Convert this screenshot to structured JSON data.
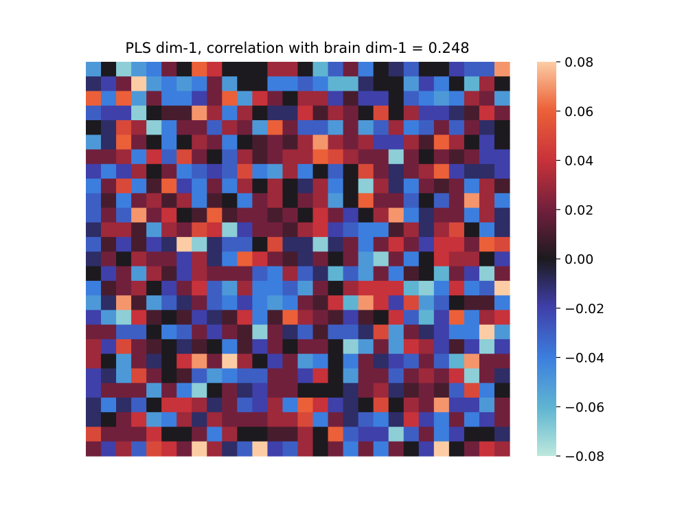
{
  "chart_data": {
    "type": "heatmap",
    "title": "PLS dim-1, correlation with brain dim-1 = 0.248",
    "xlabel": "",
    "ylabel": "",
    "n_rows": 27,
    "n_cols": 28,
    "colormap": "icefire",
    "vmin": -0.08,
    "vmax": 0.08,
    "colorbar": {
      "ticks": [
        0.08,
        0.06,
        0.04,
        0.02,
        0.0,
        -0.02,
        -0.04,
        -0.06,
        -0.08
      ],
      "tick_labels": [
        "0.08",
        "0.06",
        "0.04",
        "0.02",
        "0.00",
        "−0.02",
        "−0.04",
        "−0.06",
        "−0.08"
      ]
    },
    "values": [
      [
        -0.05,
        0.0,
        -0.07,
        -0.05,
        -0.04,
        0.02,
        0.0,
        0.06,
        0.04,
        0.0,
        0.0,
        0.0,
        0.03,
        0.03,
        0.0,
        -0.06,
        -0.03,
        0.02,
        -0.04,
        0.0,
        -0.01,
        -0.03,
        0.0,
        0.0,
        -0.02,
        -0.03,
        -0.03,
        0.07
      ],
      [
        -0.01,
        -0.02,
        0.02,
        0.08,
        -0.05,
        -0.04,
        -0.05,
        -0.04,
        0.02,
        -0.05,
        0.0,
        0.0,
        -0.04,
        -0.04,
        -0.03,
        -0.04,
        -0.06,
        -0.06,
        -0.01,
        0.0,
        0.0,
        -0.05,
        -0.02,
        -0.04,
        0.0,
        -0.06,
        0.03,
        0.0
      ],
      [
        0.06,
        -0.04,
        0.06,
        -0.05,
        0.02,
        -0.04,
        -0.04,
        -0.02,
        0.02,
        0.06,
        -0.05,
        0.04,
        0.02,
        0.0,
        0.03,
        0.03,
        -0.02,
        0.01,
        -0.02,
        -0.02,
        0.0,
        -0.03,
        -0.04,
        -0.05,
        -0.04,
        0.03,
        0.02,
        -0.05
      ],
      [
        -0.03,
        -0.02,
        -0.02,
        -0.07,
        0.0,
        0.01,
        0.01,
        0.07,
        0.03,
        -0.04,
        0.03,
        0.0,
        -0.01,
        -0.01,
        0.04,
        0.01,
        0.03,
        0.02,
        0.0,
        0.05,
        0.0,
        0.03,
        -0.02,
        -0.02,
        -0.01,
        0.01,
        0.04,
        0.02
      ],
      [
        0.0,
        -0.01,
        0.05,
        0.03,
        -0.07,
        -0.04,
        0.02,
        0.02,
        -0.03,
        0.03,
        0.02,
        -0.05,
        0.06,
        0.02,
        -0.03,
        -0.03,
        -0.05,
        0.02,
        -0.05,
        -0.03,
        0.03,
        -0.04,
        -0.03,
        0.02,
        -0.03,
        0.02,
        -0.01,
        0.0
      ],
      [
        -0.05,
        -0.01,
        0.06,
        0.02,
        0.0,
        -0.04,
        0.0,
        0.03,
        0.02,
        -0.04,
        0.0,
        0.01,
        0.02,
        0.01,
        0.03,
        0.07,
        0.03,
        0.02,
        0.03,
        -0.02,
        -0.02,
        0.03,
        0.01,
        0.06,
        0.03,
        0.0,
        -0.02,
        0.0
      ],
      [
        0.02,
        0.02,
        0.03,
        -0.04,
        0.04,
        -0.03,
        0.05,
        0.02,
        0.0,
        -0.03,
        0.03,
        0.01,
        0.02,
        0.03,
        0.03,
        0.06,
        0.05,
        0.03,
        0.02,
        0.02,
        -0.07,
        0.02,
        0.0,
        0.02,
        0.01,
        0.02,
        -0.02,
        -0.02
      ],
      [
        -0.02,
        -0.04,
        -0.02,
        0.03,
        0.0,
        0.02,
        -0.04,
        -0.03,
        -0.02,
        -0.03,
        0.05,
        -0.04,
        -0.05,
        0.03,
        -0.04,
        0.0,
        -0.03,
        0.0,
        0.05,
        0.02,
        -0.01,
        0.02,
        0.03,
        0.06,
        -0.02,
        -0.01,
        -0.01,
        -0.02
      ],
      [
        -0.04,
        0.02,
        0.05,
        -0.04,
        0.01,
        0.06,
        -0.02,
        -0.04,
        0.02,
        -0.04,
        0.03,
        0.0,
        0.03,
        0.0,
        -0.01,
        0.03,
        -0.04,
        0.0,
        -0.07,
        0.03,
        -0.01,
        -0.04,
        0.02,
        0.01,
        0.02,
        -0.04,
        0.03,
        0.01
      ],
      [
        -0.03,
        0.01,
        -0.04,
        0.02,
        0.03,
        0.01,
        0.03,
        -0.04,
        0.01,
        0.0,
        -0.04,
        0.02,
        0.03,
        0.0,
        0.02,
        0.03,
        -0.05,
        0.0,
        0.06,
        0.02,
        0.02,
        -0.03,
        0.0,
        -0.03,
        0.02,
        0.07,
        0.03,
        -0.04
      ],
      [
        -0.03,
        0.02,
        -0.03,
        0.07,
        0.02,
        0.04,
        0.0,
        0.01,
        0.06,
        0.01,
        0.02,
        0.02,
        0.01,
        0.02,
        0.0,
        0.04,
        0.02,
        -0.02,
        0.0,
        0.03,
        0.07,
        -0.04,
        -0.01,
        0.02,
        0.02,
        -0.04,
        0.03,
        -0.01
      ],
      [
        -0.01,
        0.03,
        0.03,
        0.01,
        -0.05,
        0.03,
        0.02,
        0.05,
        0.04,
        -0.07,
        -0.02,
        0.02,
        0.02,
        0.01,
        0.03,
        0.04,
        -0.02,
        -0.03,
        -0.04,
        -0.04,
        0.01,
        0.03,
        -0.01,
        0.03,
        0.05,
        0.0,
        -0.04,
        -0.01
      ],
      [
        -0.03,
        0.01,
        -0.02,
        0.01,
        -0.02,
        -0.01,
        0.08,
        -0.07,
        -0.01,
        -0.03,
        -0.03,
        0.0,
        0.05,
        -0.01,
        -0.01,
        -0.07,
        -0.01,
        0.02,
        -0.04,
        0.02,
        0.04,
        0.02,
        -0.02,
        0.04,
        0.04,
        0.02,
        0.06,
        0.05
      ],
      [
        -0.01,
        0.02,
        0.0,
        0.03,
        0.02,
        0.02,
        -0.02,
        0.03,
        -0.01,
        -0.04,
        0.06,
        0.04,
        0.02,
        0.01,
        -0.01,
        0.02,
        0.0,
        0.02,
        -0.05,
        -0.07,
        0.02,
        -0.04,
        0.0,
        0.04,
        0.03,
        0.03,
        0.0,
        -0.02
      ],
      [
        0.0,
        -0.02,
        0.02,
        -0.05,
        0.03,
        0.01,
        -0.02,
        0.03,
        0.02,
        0.02,
        0.02,
        -0.03,
        -0.04,
        0.03,
        -0.03,
        -0.01,
        -0.06,
        -0.03,
        -0.05,
        0.02,
        -0.04,
        0.01,
        0.0,
        -0.06,
        0.02,
        -0.02,
        -0.07,
        0.02
      ],
      [
        -0.04,
        0.01,
        0.02,
        0.03,
        0.0,
        -0.02,
        0.02,
        0.04,
        -0.03,
        -0.05,
        0.03,
        -0.04,
        -0.04,
        -0.03,
        -0.05,
        0.02,
        0.0,
        0.03,
        0.04,
        0.04,
        0.04,
        -0.06,
        -0.07,
        -0.04,
        0.04,
        -0.04,
        -0.03,
        0.08
      ],
      [
        -0.05,
        -0.01,
        0.07,
        0.01,
        -0.05,
        -0.03,
        -0.01,
        0.02,
        -0.03,
        -0.04,
        -0.02,
        -0.04,
        -0.05,
        -0.04,
        0.02,
        0.01,
        0.04,
        -0.06,
        0.07,
        0.04,
        -0.02,
        0.05,
        -0.05,
        -0.03,
        0.0,
        0.01,
        0.01,
        -0.04
      ],
      [
        -0.02,
        -0.05,
        -0.07,
        0.04,
        0.01,
        0.0,
        0.01,
        -0.02,
        -0.01,
        0.01,
        0.04,
        -0.04,
        0.01,
        0.06,
        0.03,
        0.02,
        0.01,
        -0.02,
        0.01,
        0.0,
        0.04,
        -0.03,
        -0.06,
        -0.02,
        0.06,
        -0.04,
        0.03,
        0.04
      ],
      [
        0.02,
        0.02,
        -0.03,
        -0.03,
        0.0,
        -0.04,
        -0.03,
        0.02,
        -0.02,
        0.02,
        0.01,
        -0.07,
        0.02,
        -0.01,
        -0.03,
        0.01,
        -0.03,
        -0.03,
        -0.01,
        0.05,
        -0.05,
        0.02,
        -0.01,
        -0.02,
        -0.04,
        -0.04,
        0.08,
        -0.05
      ],
      [
        0.03,
        -0.02,
        0.05,
        0.02,
        0.01,
        0.0,
        -0.01,
        0.01,
        0.0,
        -0.04,
        0.01,
        -0.02,
        0.02,
        0.0,
        0.02,
        0.02,
        0.0,
        -0.07,
        -0.05,
        0.02,
        -0.05,
        0.04,
        0.03,
        -0.02,
        0.01,
        -0.02,
        -0.07,
        -0.02
      ],
      [
        0.03,
        0.0,
        -0.05,
        0.02,
        -0.01,
        0.0,
        0.04,
        0.07,
        0.02,
        0.08,
        0.03,
        0.0,
        -0.02,
        0.02,
        -0.05,
        -0.04,
        0.0,
        -0.04,
        0.02,
        -0.01,
        -0.02,
        -0.03,
        0.02,
        -0.03,
        -0.06,
        0.07,
        0.02,
        0.02
      ],
      [
        -0.02,
        -0.01,
        -0.05,
        0.05,
        0.02,
        0.0,
        0.01,
        -0.03,
        -0.05,
        -0.04,
        -0.03,
        -0.03,
        0.02,
        0.02,
        -0.02,
        0.04,
        0.0,
        -0.05,
        0.02,
        0.02,
        -0.03,
        0.02,
        0.03,
        0.02,
        0.04,
        -0.07,
        0.02,
        -0.01
      ],
      [
        -0.02,
        0.02,
        0.02,
        0.02,
        -0.05,
        0.02,
        -0.04,
        -0.07,
        0.0,
        0.02,
        -0.01,
        -0.02,
        0.02,
        0.02,
        0.0,
        0.0,
        0.0,
        -0.01,
        0.02,
        0.03,
        -0.01,
        0.01,
        0.02,
        0.01,
        -0.03,
        0.05,
        -0.04,
        0.0
      ],
      [
        -0.01,
        -0.04,
        -0.01,
        -0.03,
        0.0,
        0.04,
        0.04,
        0.03,
        -0.01,
        0.02,
        -0.03,
        -0.02,
        0.03,
        -0.04,
        0.06,
        0.04,
        -0.02,
        -0.01,
        0.0,
        0.05,
        0.0,
        0.03,
        0.02,
        0.07,
        -0.02,
        -0.02,
        -0.05,
        0.02
      ],
      [
        -0.01,
        0.0,
        0.02,
        0.04,
        -0.05,
        -0.04,
        0.03,
        -0.01,
        0.03,
        0.02,
        0.02,
        0.02,
        0.03,
        0.03,
        0.05,
        -0.04,
        0.02,
        -0.01,
        -0.03,
        -0.04,
        -0.01,
        0.04,
        -0.02,
        -0.04,
        0.02,
        -0.04,
        -0.02,
        0.02
      ],
      [
        0.05,
        0.02,
        0.02,
        0.02,
        0.04,
        0.0,
        0.0,
        0.02,
        -0.04,
        0.03,
        0.0,
        0.0,
        0.01,
        0.01,
        0.03,
        0.0,
        0.06,
        -0.03,
        -0.02,
        -0.02,
        -0.07,
        -0.03,
        0.02,
        -0.04,
        -0.02,
        0.0,
        0.0,
        -0.01
      ],
      [
        0.02,
        -0.02,
        0.03,
        -0.03,
        0.05,
        0.04,
        0.02,
        0.08,
        0.03,
        -0.01,
        -0.03,
        0.08,
        -0.02,
        -0.03,
        0.03,
        0.0,
        0.02,
        -0.04,
        0.02,
        -0.04,
        0.02,
        0.0,
        -0.02,
        0.08,
        0.0,
        0.02,
        0.04,
        0.03
      ]
    ]
  }
}
